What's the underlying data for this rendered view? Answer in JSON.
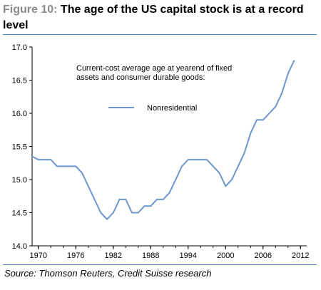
{
  "figure": {
    "label": "Figure 10:",
    "title": " The age of the US capital stock is at a record level"
  },
  "source": "Source: Thomson Reuters, Credit Suisse research",
  "chart_data": {
    "type": "line",
    "annotation": [
      "Current-cost average age at yearend of fixed",
      "assets and consumer durable goods:"
    ],
    "series": [
      {
        "name": "Nonresidential",
        "color": "#6b97cc",
        "points": [
          [
            1969,
            15.35
          ],
          [
            1970,
            15.3
          ],
          [
            1971,
            15.3
          ],
          [
            1972,
            15.3
          ],
          [
            1973,
            15.2
          ],
          [
            1974,
            15.2
          ],
          [
            1975,
            15.2
          ],
          [
            1976,
            15.2
          ],
          [
            1977,
            15.1
          ],
          [
            1978,
            14.9
          ],
          [
            1979,
            14.7
          ],
          [
            1980,
            14.5
          ],
          [
            1981,
            14.4
          ],
          [
            1982,
            14.5
          ],
          [
            1983,
            14.7
          ],
          [
            1984,
            14.7
          ],
          [
            1985,
            14.5
          ],
          [
            1986,
            14.5
          ],
          [
            1987,
            14.6
          ],
          [
            1988,
            14.6
          ],
          [
            1989,
            14.7
          ],
          [
            1990,
            14.7
          ],
          [
            1991,
            14.8
          ],
          [
            1992,
            15.0
          ],
          [
            1993,
            15.2
          ],
          [
            1994,
            15.3
          ],
          [
            1995,
            15.3
          ],
          [
            1996,
            15.3
          ],
          [
            1997,
            15.3
          ],
          [
            1998,
            15.2
          ],
          [
            1999,
            15.1
          ],
          [
            2000,
            14.9
          ],
          [
            2001,
            15.0
          ],
          [
            2002,
            15.2
          ],
          [
            2003,
            15.4
          ],
          [
            2004,
            15.7
          ],
          [
            2005,
            15.9
          ],
          [
            2006,
            15.9
          ],
          [
            2007,
            16.0
          ],
          [
            2008,
            16.1
          ],
          [
            2009,
            16.3
          ],
          [
            2010,
            16.6
          ],
          [
            2011,
            16.8
          ]
        ]
      }
    ],
    "x_ticks": [
      "1970",
      "1976",
      "1982",
      "1988",
      "1994",
      "2000",
      "2006",
      "2012"
    ],
    "y_ticks": [
      "14.0",
      "14.5",
      "15.0",
      "15.5",
      "16.0",
      "16.5",
      "17.0"
    ],
    "xlim": [
      1969,
      2013
    ],
    "ylim": [
      14.0,
      17.0
    ],
    "grid": false,
    "legend_position": "upper-left"
  }
}
